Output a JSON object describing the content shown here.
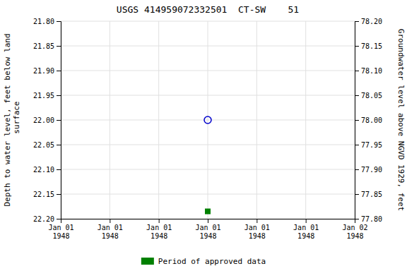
{
  "chart_data": {
    "type": "scatter",
    "title": "USGS 414959072332501  CT-SW    51",
    "y_label": "Depth to water level, feet below land\n surface",
    "y2_label": "Groundwater level above NGVD 1929, feet",
    "categories": [
      "Jan 01\n1948",
      "Jan 01\n1948",
      "Jan 01\n1948",
      "Jan 01\n1948",
      "Jan 01\n1948",
      "Jan 01\n1948",
      "Jan 02\n1948"
    ],
    "series": [
      {
        "color": "#0000cc",
        "marker": "open-circle",
        "values": [
          null,
          null,
          null,
          22.0,
          null,
          null,
          null
        ]
      },
      {
        "name": "Period of approved data",
        "color": "#008000",
        "marker": "square",
        "values": [
          null,
          null,
          null,
          22.185,
          null,
          null,
          null
        ]
      }
    ],
    "ylim": [
      22.2,
      21.8
    ],
    "yticks": [
      {
        "value": 21.8,
        "label": "21.80"
      },
      {
        "value": 21.85,
        "label": "21.85"
      },
      {
        "value": 21.9,
        "label": "21.90"
      },
      {
        "value": 21.95,
        "label": "21.95"
      },
      {
        "value": 22.0,
        "label": "22.00"
      },
      {
        "value": 22.05,
        "label": "22.05"
      },
      {
        "value": 22.1,
        "label": "22.10"
      },
      {
        "value": 22.15,
        "label": "22.15"
      },
      {
        "value": 22.2,
        "label": "22.20"
      }
    ],
    "y2lim": [
      77.8,
      78.2
    ],
    "y2ticks": [
      {
        "value": 78.2,
        "label": "78.20"
      },
      {
        "value": 78.15,
        "label": "78.15"
      },
      {
        "value": 78.1,
        "label": "78.10"
      },
      {
        "value": 78.05,
        "label": "78.05"
      },
      {
        "value": 78.0,
        "label": "78.00"
      },
      {
        "value": 77.95,
        "label": "77.95"
      },
      {
        "value": 77.9,
        "label": "77.90"
      },
      {
        "value": 77.85,
        "label": "77.85"
      },
      {
        "value": 77.8,
        "label": "77.80"
      }
    ],
    "grid": true,
    "legend": "bottom"
  }
}
